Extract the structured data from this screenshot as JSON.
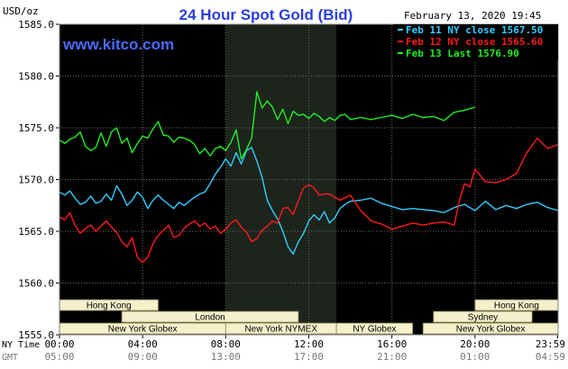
{
  "chart_data": {
    "type": "line",
    "title": "24 Hour Spot Gold (Bid)",
    "ylabel": "USD/oz",
    "watermark": "www.kitco.com",
    "date_label": "February 13, 2020 19:45",
    "ylim": [
      1555.0,
      1585.0
    ],
    "y_ticks": [
      "1585.0",
      "1580.0",
      "1575.0",
      "1570.0",
      "1565.0",
      "1560.0",
      "1555.0"
    ],
    "x_axis_rows": [
      {
        "label": "NY Time",
        "ticks": [
          "00:00",
          "04:00",
          "08:00",
          "12:00",
          "16:00",
          "20:00",
          "23:59"
        ]
      },
      {
        "label": "GMT",
        "ticks": [
          "05:00",
          "09:00",
          "13:00",
          "17:00",
          "21:00",
          "01:00",
          "04:59"
        ]
      }
    ],
    "highlight_hours": [
      8.0,
      13.33
    ],
    "legend": [
      {
        "text": "Feb 11 NY close 1567.50",
        "color": "#33ccff"
      },
      {
        "text": "Feb 12 NY close 1565.60",
        "color": "#ff1a1a"
      },
      {
        "text": "Feb 13 Last 1576.90",
        "color": "#22ee22"
      }
    ],
    "sessions": [
      {
        "label": "Hong Kong",
        "start": 0.0,
        "end": 4.75,
        "row": 0
      },
      {
        "label": "London",
        "start": 3.0,
        "end": 11.5,
        "row": 1
      },
      {
        "label": "New York Globex",
        "start": 0.0,
        "end": 8.0,
        "row": 2
      },
      {
        "label": "New York NYMEX",
        "start": 8.0,
        "end": 13.33,
        "row": 2
      },
      {
        "label": "NY Globex",
        "start": 13.33,
        "end": 17.0,
        "row": 2
      },
      {
        "label": "Hong Kong",
        "start": 20.0,
        "end": 24.0,
        "row": 0
      },
      {
        "label": "Sydney",
        "start": 18.0,
        "end": 22.75,
        "row": 1
      },
      {
        "label": "New York Globex",
        "start": 17.5,
        "end": 24.0,
        "row": 2
      }
    ],
    "series": [
      {
        "name": "Feb 11 NY close 1567.50",
        "color": "#33ccff",
        "x": [
          0,
          0.25,
          0.5,
          0.75,
          1,
          1.25,
          1.5,
          1.75,
          2,
          2.25,
          2.5,
          2.75,
          3,
          3.25,
          3.5,
          3.75,
          4,
          4.25,
          4.5,
          4.75,
          5,
          5.25,
          5.5,
          5.75,
          6,
          6.25,
          6.5,
          6.75,
          7,
          7.25,
          7.5,
          7.75,
          8,
          8.25,
          8.5,
          8.75,
          9,
          9.25,
          9.5,
          9.75,
          10,
          10.25,
          10.5,
          10.75,
          11,
          11.25,
          11.5,
          11.75,
          12,
          12.25,
          12.5,
          12.75,
          13,
          13.25,
          13.5,
          13.75,
          14,
          14.5,
          15,
          15.5,
          16,
          16.5,
          17,
          17.5,
          18,
          18.5,
          19,
          19.5,
          20,
          20.5,
          21,
          21.5,
          22,
          22.5,
          23,
          23.5,
          24
        ],
        "values": [
          1568.8,
          1568.5,
          1568.9,
          1568.2,
          1567.6,
          1567.8,
          1568.4,
          1567.7,
          1567.9,
          1568.6,
          1568.0,
          1569.4,
          1568.6,
          1567.5,
          1568.0,
          1568.8,
          1568.3,
          1567.2,
          1568.0,
          1568.5,
          1568.0,
          1567.6,
          1567.2,
          1567.8,
          1567.5,
          1567.9,
          1568.3,
          1568.6,
          1568.8,
          1569.6,
          1570.5,
          1571.2,
          1572.0,
          1571.3,
          1572.6,
          1571.5,
          1572.8,
          1573.1,
          1571.8,
          1570.2,
          1568.0,
          1567.0,
          1566.2,
          1565.0,
          1563.5,
          1562.8,
          1564.0,
          1564.8,
          1566.0,
          1566.6,
          1566.1,
          1566.9,
          1565.8,
          1566.3,
          1567.2,
          1567.6,
          1567.9,
          1568.0,
          1568.2,
          1567.7,
          1567.4,
          1567.1,
          1567.2,
          1567.1,
          1567.0,
          1566.8,
          1567.3,
          1567.6,
          1567.0,
          1567.9,
          1567.1,
          1567.5,
          1567.2,
          1567.6,
          1567.8,
          1567.3,
          1567.0
        ]
      },
      {
        "name": "Feb 12 NY close 1565.60",
        "color": "#ff1a1a",
        "x": [
          0,
          0.25,
          0.5,
          0.75,
          1,
          1.25,
          1.5,
          1.75,
          2,
          2.25,
          2.5,
          2.75,
          3,
          3.25,
          3.5,
          3.75,
          4,
          4.25,
          4.5,
          4.75,
          5,
          5.25,
          5.5,
          5.75,
          6,
          6.25,
          6.5,
          6.75,
          7,
          7.25,
          7.5,
          7.75,
          8,
          8.25,
          8.5,
          8.75,
          9,
          9.25,
          9.5,
          9.75,
          10,
          10.25,
          10.5,
          10.75,
          11,
          11.25,
          11.5,
          11.75,
          12,
          12.25,
          12.5,
          12.75,
          13,
          13.5,
          14,
          14.5,
          15,
          15.5,
          16,
          16.5,
          17,
          17.5,
          18,
          18.5,
          19,
          19.25,
          19.5,
          19.75,
          20,
          20.5,
          21,
          21.5,
          22,
          22.5,
          23,
          23.5,
          24
        ],
        "values": [
          1566.4,
          1566.1,
          1566.8,
          1565.6,
          1564.8,
          1565.3,
          1565.6,
          1565.0,
          1565.5,
          1566.0,
          1565.4,
          1564.9,
          1564.0,
          1563.5,
          1564.4,
          1562.5,
          1562.0,
          1562.5,
          1563.8,
          1564.6,
          1565.1,
          1565.6,
          1564.4,
          1564.6,
          1565.3,
          1565.7,
          1566.0,
          1565.5,
          1565.8,
          1565.2,
          1565.5,
          1564.8,
          1565.2,
          1565.8,
          1566.1,
          1565.4,
          1564.9,
          1564.0,
          1564.3,
          1565.1,
          1565.5,
          1566.0,
          1565.8,
          1567.2,
          1567.3,
          1566.6,
          1568.0,
          1569.2,
          1569.5,
          1569.2,
          1568.5,
          1568.6,
          1568.6,
          1568.0,
          1568.5,
          1567.0,
          1566.0,
          1565.7,
          1565.2,
          1565.5,
          1565.8,
          1565.6,
          1565.8,
          1565.9,
          1565.6,
          1568.0,
          1569.6,
          1569.3,
          1571.0,
          1569.8,
          1569.7,
          1570.0,
          1570.6,
          1572.6,
          1574.0,
          1573.0,
          1573.4
        ]
      },
      {
        "name": "Feb 13 Last 1576.90",
        "color": "#22ee22",
        "x": [
          0,
          0.25,
          0.5,
          0.75,
          1,
          1.25,
          1.5,
          1.75,
          2,
          2.25,
          2.5,
          2.75,
          3,
          3.25,
          3.5,
          3.75,
          4,
          4.25,
          4.5,
          4.75,
          5,
          5.25,
          5.5,
          5.75,
          6,
          6.25,
          6.5,
          6.75,
          7,
          7.25,
          7.5,
          7.75,
          8,
          8.25,
          8.5,
          8.75,
          9,
          9.25,
          9.5,
          9.75,
          10,
          10.25,
          10.5,
          10.75,
          11,
          11.25,
          11.5,
          11.75,
          12,
          12.25,
          12.5,
          12.75,
          13,
          13.25,
          13.5,
          13.75,
          14,
          14.5,
          15,
          15.5,
          16,
          16.5,
          17,
          17.5,
          18,
          18.5,
          19,
          19.5,
          20
        ],
        "values": [
          1573.8,
          1573.5,
          1573.9,
          1574.1,
          1574.6,
          1573.2,
          1572.8,
          1573.1,
          1574.5,
          1573.2,
          1574.6,
          1575.0,
          1573.5,
          1574.0,
          1572.6,
          1573.5,
          1574.2,
          1574.0,
          1574.9,
          1575.6,
          1574.3,
          1574.2,
          1573.6,
          1574.1,
          1574.0,
          1573.8,
          1573.4,
          1572.5,
          1573.0,
          1572.3,
          1573.0,
          1573.2,
          1572.8,
          1573.6,
          1574.8,
          1572.0,
          1572.9,
          1574.0,
          1578.5,
          1576.9,
          1577.6,
          1577.0,
          1575.8,
          1576.8,
          1575.4,
          1576.6,
          1576.2,
          1576.3,
          1575.9,
          1576.4,
          1576.1,
          1575.6,
          1576.0,
          1575.7,
          1576.2,
          1576.3,
          1575.8,
          1576.0,
          1575.8,
          1576.0,
          1576.2,
          1575.9,
          1576.3,
          1576.0,
          1576.1,
          1575.7,
          1576.5,
          1576.7,
          1577.0
        ]
      }
    ]
  }
}
